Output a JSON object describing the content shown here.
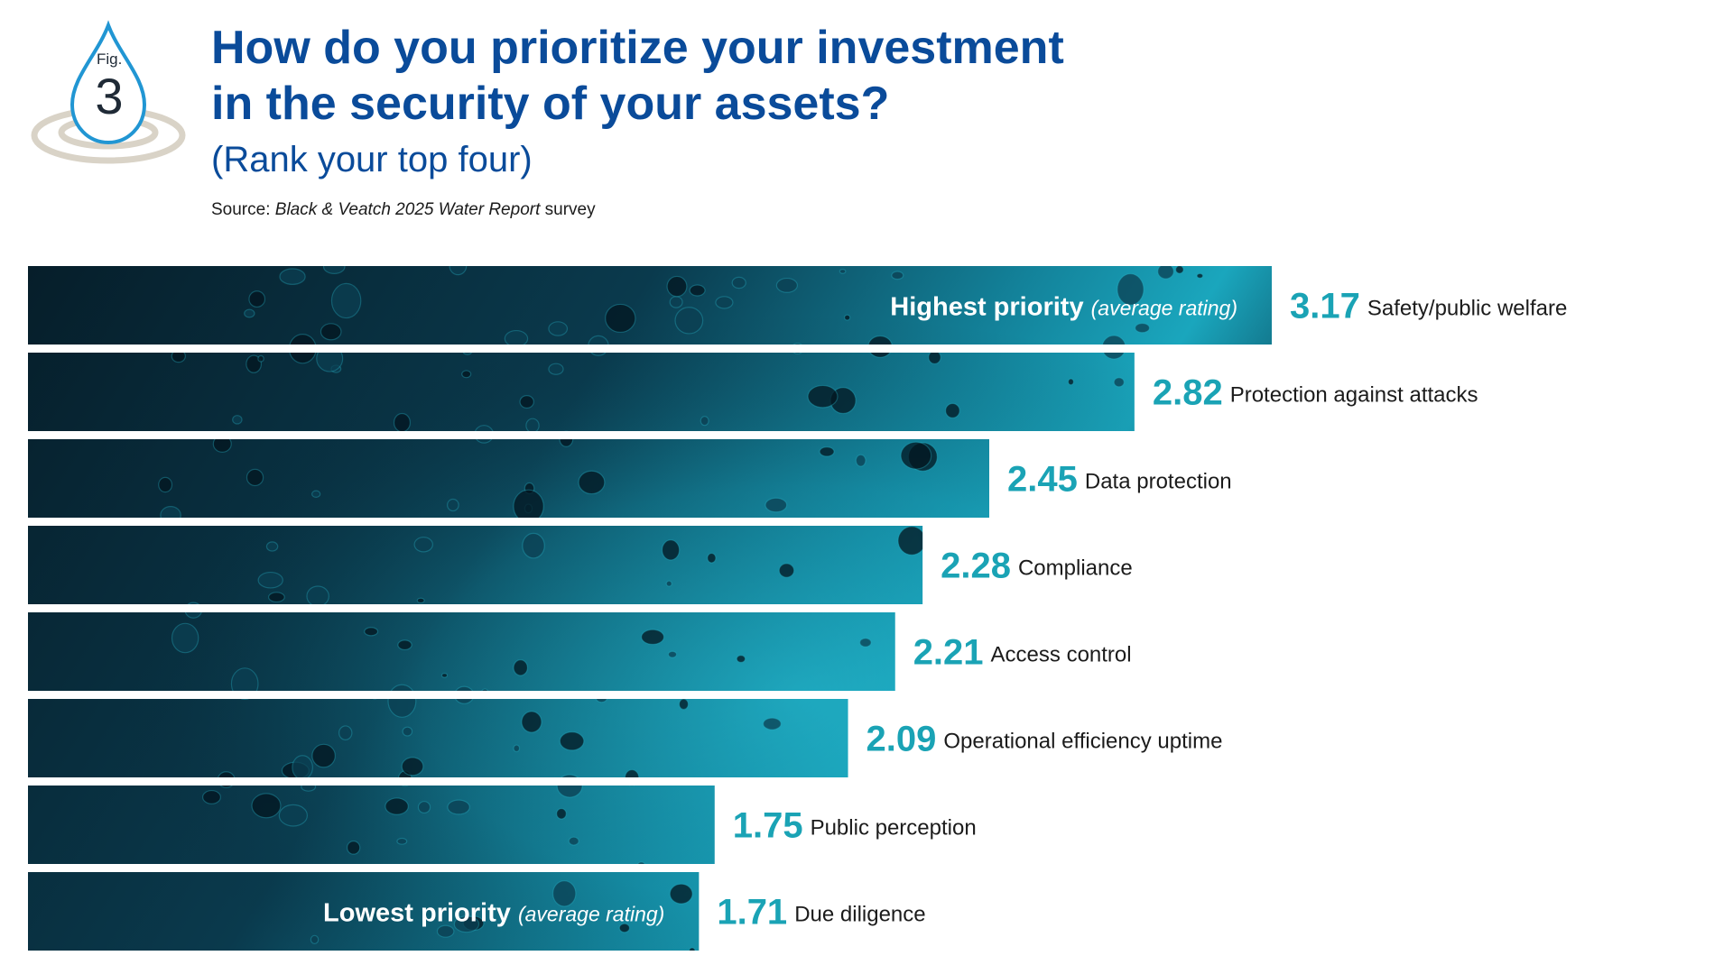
{
  "figure": {
    "label": "Fig.",
    "number": "3"
  },
  "header": {
    "title_line1": "How do you prioritize your investment",
    "title_line2": "in the security of your assets?",
    "subtitle": "(Rank your top four)",
    "source_prefix": "Source: ",
    "source_italic": "Black & Veatch 2025 Water Report",
    "source_suffix": " survey"
  },
  "colors": {
    "title": "#0a4b9a",
    "value": "#1aa3b5",
    "bar_dark": "#061e2a",
    "bar_light": "#1aa6bd"
  },
  "chart_data": {
    "type": "bar",
    "orientation": "horizontal",
    "title": "How do you prioritize your investment in the security of your assets?",
    "subtitle": "(Rank your top four)",
    "xlabel": "average rating",
    "ylabel": "",
    "xlim": [
      0,
      3.17
    ],
    "categories": [
      "Safety/public welfare",
      "Protection against attacks",
      "Data protection",
      "Compliance",
      "Access control",
      "Operational efficiency uptime",
      "Public perception",
      "Due diligence"
    ],
    "values": [
      3.17,
      2.82,
      2.45,
      2.28,
      2.21,
      2.09,
      1.75,
      1.71
    ],
    "value_labels": [
      "3.17",
      "2.82",
      "2.45",
      "2.28",
      "2.21",
      "2.09",
      "1.75",
      "1.71"
    ],
    "annotations": {
      "highest_strong": "Highest priority",
      "highest_em": "(average rating)",
      "lowest_strong": "Lowest priority",
      "lowest_em": "(average rating)"
    }
  }
}
